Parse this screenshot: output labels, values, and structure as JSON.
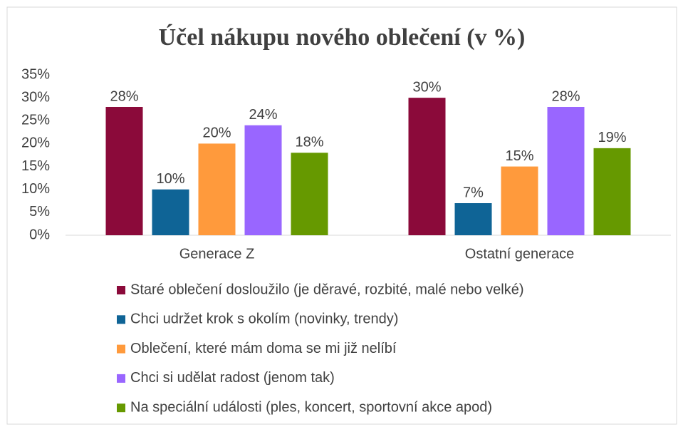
{
  "chart_data": {
    "type": "bar",
    "title": "Účel nákupu nového oblečení (v %)",
    "categories": [
      "Generace Z",
      "Ostatní generace"
    ],
    "series": [
      {
        "name": "Staré oblečení dosloužilo (je děravé, rozbité, malé nebo velké)",
        "color": "#8b0a3a",
        "values": [
          28,
          30
        ],
        "value_labels": [
          "28%",
          "30%"
        ]
      },
      {
        "name": "Chci udržet krok s okolím (novinky, trendy)",
        "color": "#0f6496",
        "values": [
          10,
          7
        ],
        "value_labels": [
          "10%",
          "7%"
        ]
      },
      {
        "name": "Oblečení, které mám doma se mi již nelíbí",
        "color": "#ff9a3c",
        "values": [
          20,
          15
        ],
        "value_labels": [
          "20%",
          "15%"
        ]
      },
      {
        "name": "Chci si udělat radost (jenom tak)",
        "color": "#9966ff",
        "values": [
          24,
          28
        ],
        "value_labels": [
          "24%",
          "28%"
        ]
      },
      {
        "name": "Na speciální události (ples, koncert, sportovní akce apod)",
        "color": "#669900",
        "values": [
          18,
          19
        ],
        "value_labels": [
          "18%",
          "19%"
        ]
      }
    ],
    "ylim": [
      0,
      35
    ],
    "yticks": [
      {
        "value": 0,
        "label": "0%"
      },
      {
        "value": 5,
        "label": "5%"
      },
      {
        "value": 10,
        "label": "10%"
      },
      {
        "value": 15,
        "label": "15%"
      },
      {
        "value": 20,
        "label": "20%"
      },
      {
        "value": 25,
        "label": "25%"
      },
      {
        "value": 30,
        "label": "30%"
      },
      {
        "value": 35,
        "label": "35%"
      }
    ],
    "grid": false,
    "legend": "bottom"
  }
}
